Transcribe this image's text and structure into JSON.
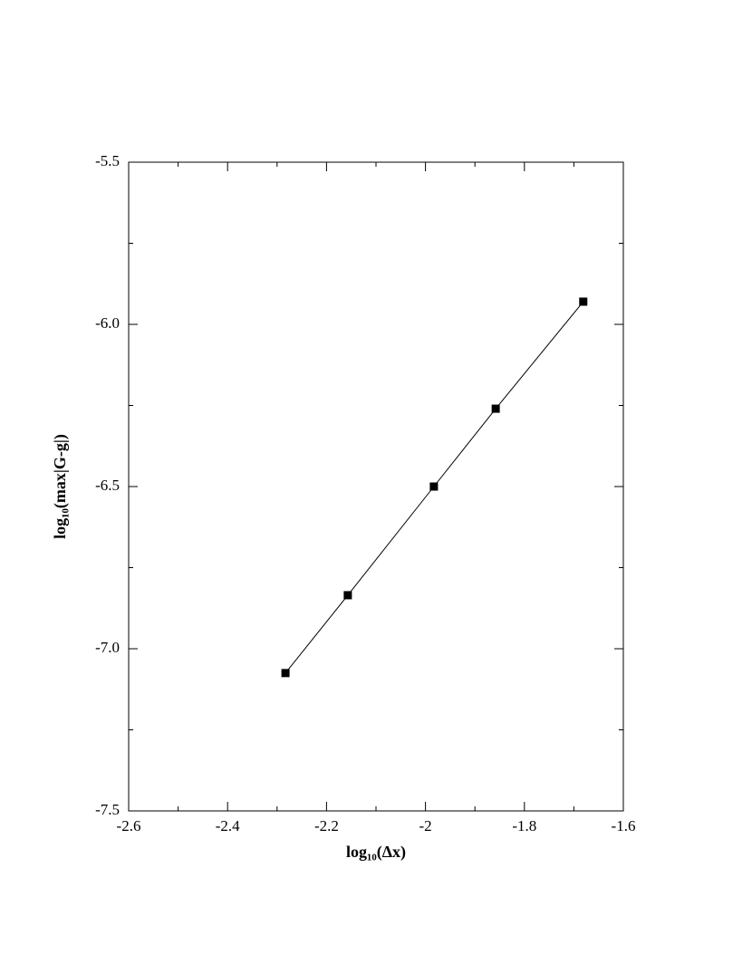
{
  "chart_data": {
    "type": "line",
    "x_label": "log₁₀(Δx)",
    "y_label": "log₁₀(max|G-g|)",
    "x": [
      -2.283,
      -2.157,
      -1.983,
      -1.858,
      -1.681
    ],
    "series": [
      {
        "color": "#000000",
        "marker": "square",
        "values": [
          -7.075,
          -6.835,
          -6.5,
          -6.26,
          -5.93
        ]
      }
    ],
    "xlim": [
      -2.6,
      -1.6
    ],
    "ylim": [
      -7.5,
      -5.5
    ],
    "xticks": [
      -2.6,
      -2.4,
      -2.2,
      -2.0,
      -1.8,
      -1.6
    ],
    "xminorticks": [
      -2.5,
      -2.3,
      -2.1,
      -1.9,
      -1.7
    ],
    "yticks": [
      {
        "value": -7.5,
        "label": "-7.5"
      },
      {
        "value": -7,
        "label": "-7.0"
      },
      {
        "value": -6.5,
        "label": "-6.5"
      },
      {
        "value": -6,
        "label": "-6.0"
      },
      {
        "value": -5.5,
        "label": "-5.5"
      }
    ],
    "yminorticks": [
      -7.25,
      -6.75,
      -6.25,
      -5.75
    ],
    "grid": false
  }
}
